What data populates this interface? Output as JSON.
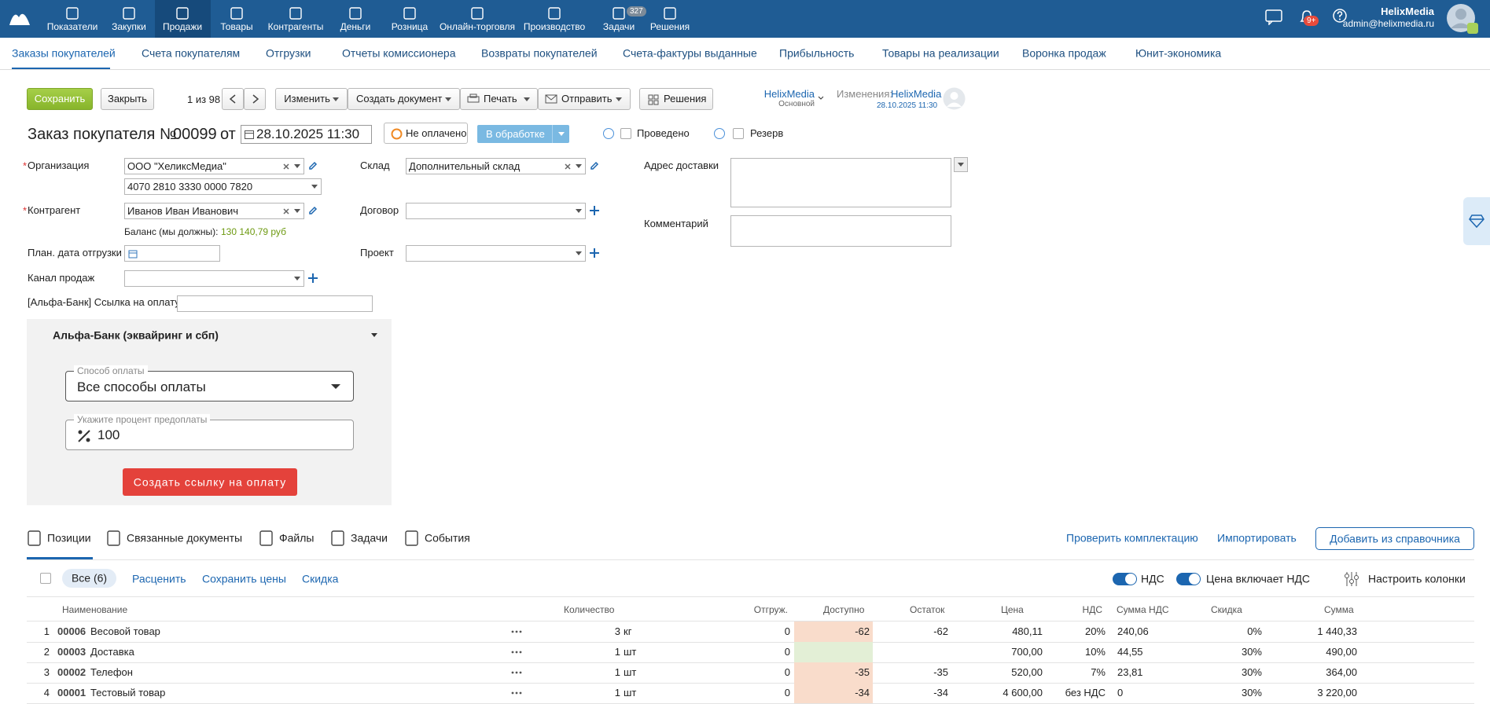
{
  "top_nav": {
    "items": [
      "Показатели",
      "Закупки",
      "Продажи",
      "Товары",
      "Контрагенты",
      "Деньги",
      "Розница",
      "Онлайн-торговля",
      "Производство",
      "Задачи",
      "Решения"
    ],
    "tasks_badge": "327",
    "notifications_badge": "9+",
    "user_name": "HelixMedia",
    "user_email": "admin@helixmedia.ru"
  },
  "sub_nav": {
    "items": [
      "Заказы покупателей",
      "Счета покупателям",
      "Отгрузки",
      "Отчеты комиссионера",
      "Возвраты покупателей",
      "Счета-фактуры выданные",
      "Прибыльность",
      "Товары на реализации",
      "Воронка продаж",
      "Юнит-экономика"
    ]
  },
  "toolbar": {
    "save": "Сохранить",
    "close": "Закрыть",
    "pager": "1 из 98",
    "edit": "Изменить",
    "create_document": "Создать документ",
    "print": "Печать",
    "send": "Отправить",
    "solutions": "Решения",
    "owner": "HelixMedia",
    "owner_role": "Основной",
    "changes_label": "Изменения:",
    "changes_user": "HelixMedia",
    "changes_date": "28.10.2025 11:30"
  },
  "header": {
    "title": "Заказ покупателя №",
    "number": "00099",
    "from": "от",
    "date": "28.10.2025 11:30",
    "payment_status": "Не оплачено",
    "status": "В обработке",
    "posted": "Проведено",
    "reserve": "Резерв"
  },
  "form": {
    "organization": {
      "label": "Организация",
      "value": "ООО \"ХеликсМедиа\"",
      "account": "4070 2810 3330 0000 7820"
    },
    "counterparty": {
      "label": "Контрагент",
      "value": "Иванов Иван Иванович"
    },
    "balance": {
      "label": "Баланс (мы должны):",
      "value": "130 140,79 руб"
    },
    "ship_date": {
      "label": "План. дата отгрузки"
    },
    "sales_channel": {
      "label": "Канал продаж"
    },
    "payment_link": {
      "label": "[Альфа-Банк] Ссылка на оплату"
    },
    "warehouse": {
      "label": "Склад",
      "value": "Дополнительный склад"
    },
    "contract": {
      "label": "Договор"
    },
    "project": {
      "label": "Проект"
    },
    "delivery_address": {
      "label": "Адрес доставки"
    },
    "comment": {
      "label": "Комментарий"
    }
  },
  "alfa": {
    "title": "Альфа-Банк (эквайринг и сбп)",
    "method_label": "Способ оплаты",
    "method_value": "Все способы оплаты",
    "prepay_label": "Укажите процент предоплаты",
    "prepay_value": "100",
    "button": "Создать ссылку на оплату"
  },
  "tabs": [
    "Позиции",
    "Связанные документы",
    "Файлы",
    "Задачи",
    "События"
  ],
  "actions": {
    "check": "Проверить комплектацию",
    "import": "Импортировать",
    "add": "Добавить из справочника"
  },
  "table": {
    "filter_all": "Все (6)",
    "links": [
      "Расценить",
      "Сохранить цены",
      "Скидка"
    ],
    "toggles": [
      "НДС",
      "Цена включает НДС"
    ],
    "configure": "Настроить колонки",
    "columns": [
      "Наименование",
      "Количество",
      "Отгруж.",
      "Доступно",
      "Остаток",
      "Цена",
      "НДС",
      "Сумма НДС",
      "Скидка",
      "Сумма"
    ],
    "rows": [
      {
        "n": "1",
        "code": "00006",
        "name": "Весовой товар",
        "qty": "3",
        "unit": "кг",
        "shipped": "0",
        "available": "-62",
        "remainder": "-62",
        "price": "480,11",
        "vat": "20%",
        "vat_sum": "240,06",
        "discount": "0%",
        "sum": "1 440,33"
      },
      {
        "n": "2",
        "code": "00003",
        "name": "Доставка",
        "qty": "1",
        "unit": "шт",
        "shipped": "0",
        "available": null,
        "remainder": null,
        "price": "700,00",
        "vat": "10%",
        "vat_sum": "44,55",
        "discount": "30%",
        "sum": "490,00"
      },
      {
        "n": "3",
        "code": "00002",
        "name": "Телефон",
        "qty": "1",
        "unit": "шт",
        "shipped": "0",
        "available": "-35",
        "remainder": "-35",
        "price": "520,00",
        "vat": "7%",
        "vat_sum": "23,81",
        "discount": "30%",
        "sum": "364,00"
      },
      {
        "n": "4",
        "code": "00001",
        "name": "Тестовый товар",
        "qty": "1",
        "unit": "шт",
        "shipped": "0",
        "available": "-34",
        "remainder": "-34",
        "price": "4 600,00",
        "vat": "без НДС",
        "vat_sum": "0",
        "discount": "30%",
        "sum": "3 220,00"
      }
    ]
  }
}
